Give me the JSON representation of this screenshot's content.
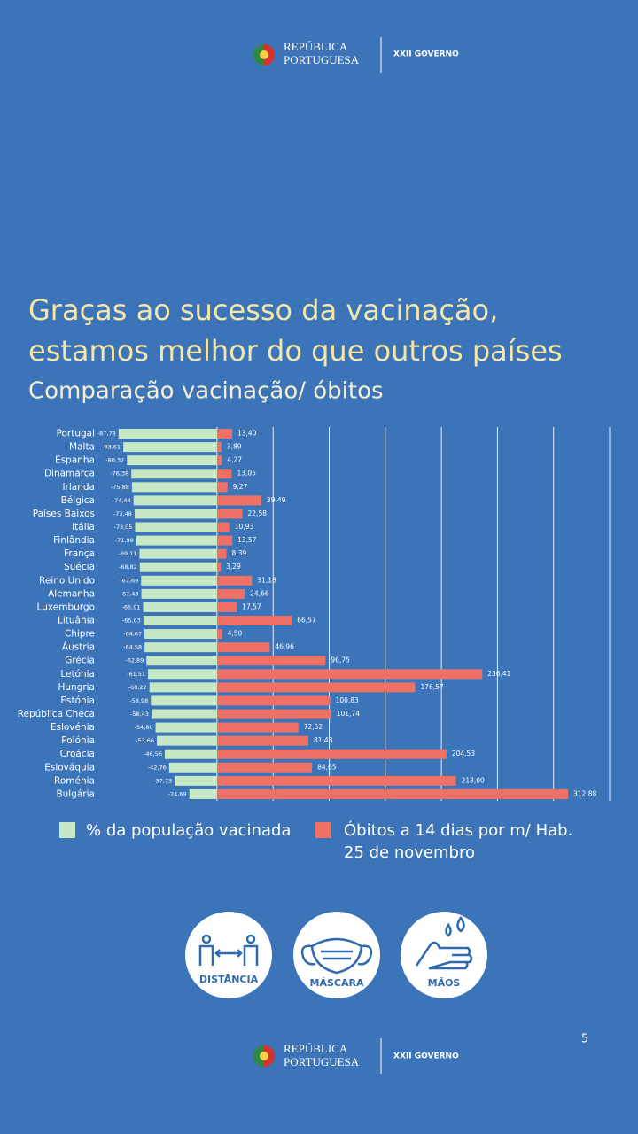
{
  "header": {
    "logo": [
      "REPÚBLICA",
      "PORTUGUESA"
    ],
    "government": "XXII GOVERNO"
  },
  "headline": [
    "Graças ao sucesso da vacinação,",
    "estamos melhor do que outros países"
  ],
  "chart_data": {
    "type": "diverging-bar",
    "title": "Comparação vacinação/ óbitos",
    "categories": [
      "Portugal",
      "Malta",
      "Espanha",
      "Dinamarca",
      "Irlanda",
      "Bélgica",
      "Países Baixos",
      "Itália",
      "Finlândia",
      "França",
      "Suécia",
      "Reino Unido",
      "Alemanha",
      "Luxemburgo",
      "Lituânia",
      "Chipre",
      "Áustria",
      "Grécia",
      "Letónia",
      "Hungria",
      "Estónia",
      "República Checa",
      "Eslovénia",
      "Polónia",
      "Croácia",
      "Eslováquia",
      "Roménia",
      "Bulgária"
    ],
    "series": [
      {
        "name": "% da população vacinada",
        "color": "#c6e8c5",
        "values": [
          -87.78,
          -83.61,
          -80.32,
          -76.38,
          -75.88,
          -74.44,
          -73.48,
          -73.05,
          -71.98,
          -69.11,
          -68.82,
          -67.69,
          -67.43,
          -65.91,
          -65.63,
          -64.67,
          -64.58,
          -62.89,
          -61.51,
          -60.22,
          -58.98,
          -58.43,
          -54.8,
          -53.66,
          -46.56,
          -42.76,
          -37.73,
          -24.69
        ],
        "value_labels": [
          "-87,78",
          "-83,61",
          "-80,32",
          "-76,38",
          "-75,88",
          "-74,44",
          "-73,48",
          "-73,05",
          "-71,98",
          "-69,11",
          "-68,82",
          "-67,69",
          "-67,43",
          "-65,91",
          "-65,63",
          "-64,67",
          "-64,58",
          "-62,89",
          "-61,51",
          "-60,22",
          "-58,98",
          "-58,43",
          "-54,80",
          "-53,66",
          "-46,56",
          "-42,76",
          "-37,73",
          "-24,69"
        ]
      },
      {
        "name": "Óbitos a 14 dias por m/ Hab.",
        "color": "#ef7166",
        "values": [
          13.4,
          3.89,
          4.27,
          13.05,
          9.27,
          39.49,
          22.58,
          10.93,
          13.57,
          8.39,
          3.29,
          31.18,
          24.66,
          17.57,
          66.57,
          4.5,
          46.96,
          96.75,
          236.41,
          176.57,
          100.83,
          101.74,
          72.52,
          81.43,
          204.53,
          84.65,
          213.0,
          312.88
        ],
        "value_labels": [
          "13,40",
          "3,89",
          "4,27",
          "13,05",
          "9,27",
          "39,49",
          "22,58",
          "10,93",
          "13,57",
          "8,39",
          "3,29",
          "31,18",
          "24,66",
          "17,57",
          "66,57",
          "4,50",
          "46,96",
          "96,75",
          "236,41",
          "176,57",
          "100,83",
          "101,74",
          "72,52",
          "81,43",
          "204,53",
          "84,65",
          "213,00",
          "312,88"
        ]
      }
    ],
    "legend_note": "25 de novembro",
    "xlim": [
      -90,
      350
    ],
    "xticks": [
      0,
      50,
      100,
      150,
      200,
      250,
      300,
      350
    ],
    "grid": true
  },
  "icons": [
    "DISTÂNCIA",
    "MÁSCARA",
    "MÃOS"
  ],
  "page_number": "5"
}
